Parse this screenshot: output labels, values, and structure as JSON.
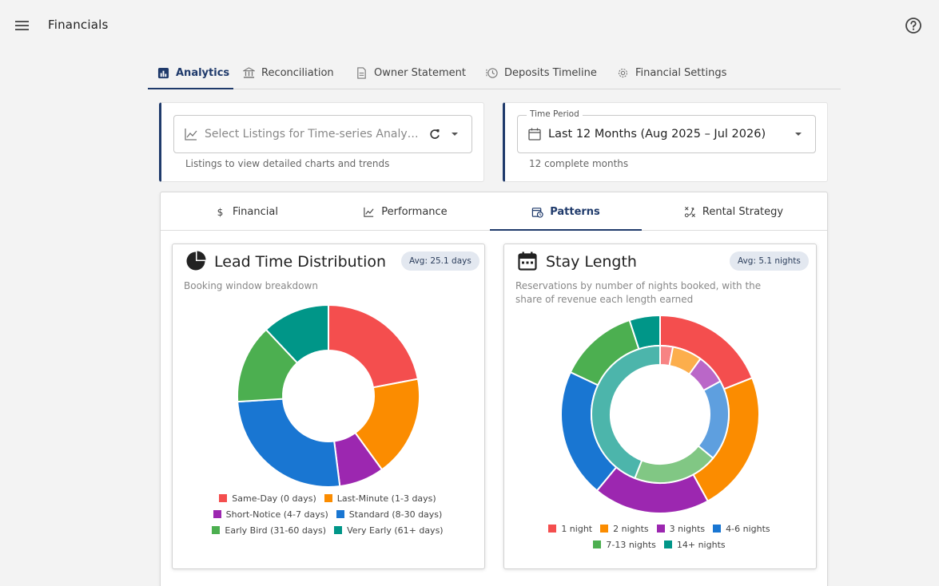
{
  "app": {
    "title": "Financials"
  },
  "top_tabs": [
    {
      "label": "Analytics",
      "icon": "bar-chart-icon",
      "active": true
    },
    {
      "label": "Reconciliation",
      "icon": "bank-icon",
      "active": false
    },
    {
      "label": "Owner Statement",
      "icon": "document-icon",
      "active": false
    },
    {
      "label": "Deposits Timeline",
      "icon": "history-icon",
      "active": false
    },
    {
      "label": "Financial Settings",
      "icon": "gear-icon",
      "active": false
    }
  ],
  "filters": {
    "listings": {
      "placeholder": "Select Listings for Time-series Analyt…",
      "helper": "Listings to view detailed charts and trends"
    },
    "time_period": {
      "label": "Time Period",
      "value": "Last 12 Months (Aug 2025 – Jul 2026)",
      "helper": "12 complete months"
    }
  },
  "sub_tabs": [
    {
      "label": "Financial",
      "icon": "dollar-icon",
      "active": false
    },
    {
      "label": "Performance",
      "icon": "line-chart-icon",
      "active": false
    },
    {
      "label": "Patterns",
      "icon": "calendar-clock-icon",
      "active": true
    },
    {
      "label": "Rental Strategy",
      "icon": "strategy-icon",
      "active": false
    }
  ],
  "lead_time": {
    "title": "Lead Time Distribution",
    "avg": "Avg: 25.1 days",
    "subtitle": "Booking window breakdown"
  },
  "stay_length": {
    "title": "Stay Length",
    "avg": "Avg: 5.1 nights",
    "subtitle": "Reservations by number of nights booked, with the share of revenue each length earned"
  },
  "chart_data": [
    {
      "type": "pie",
      "variant": "donut",
      "categories": [
        "Same-Day (0 days)",
        "Last-Minute (1-3 days)",
        "Short-Notice (4-7 days)",
        "Standard (8-30 days)",
        "Early Bird (31-60 days)",
        "Very Early (61+ days)"
      ],
      "values": [
        22,
        18,
        8,
        26,
        14,
        12
      ],
      "colors": [
        "#f44e4e",
        "#fb8c00",
        "#9c27b0",
        "#1976d2",
        "#4caf50",
        "#009688"
      ],
      "legend_position": "bottom"
    },
    {
      "type": "pie",
      "variant": "nested-donut",
      "categories": [
        "1 night",
        "2 nights",
        "3 nights",
        "4-6 nights",
        "7-13 nights",
        "14+ nights"
      ],
      "series": [
        {
          "values": [
            3,
            7,
            7,
            19,
            20,
            44
          ]
        },
        {
          "values": [
            19,
            23,
            19,
            21,
            13,
            5
          ]
        }
      ],
      "colors": [
        "#f44e4e",
        "#fb8c00",
        "#9c27b0",
        "#1976d2",
        "#4caf50",
        "#009688"
      ],
      "legend_position": "bottom"
    }
  ]
}
